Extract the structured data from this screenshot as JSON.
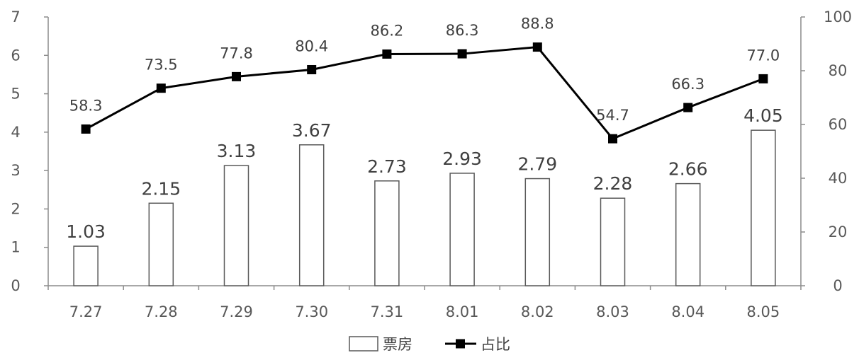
{
  "chart_data": {
    "type": "bar+line",
    "categories": [
      "7.27",
      "7.28",
      "7.29",
      "7.30",
      "7.31",
      "8.01",
      "8.02",
      "8.03",
      "8.04",
      "8.05"
    ],
    "series": [
      {
        "name": "票房",
        "type": "bar",
        "axis": "left",
        "values": [
          1.03,
          2.15,
          3.13,
          3.67,
          2.73,
          2.93,
          2.79,
          2.28,
          2.66,
          4.05
        ],
        "labels": [
          "1.03",
          "2.15",
          "3.13",
          "3.67",
          "2.73",
          "2.93",
          "2.79",
          "2.28",
          "2.66",
          "4.05"
        ],
        "fill": "#ffffff",
        "stroke": "#595959"
      },
      {
        "name": "占比",
        "type": "line",
        "axis": "right",
        "values": [
          58.3,
          73.5,
          77.8,
          80.4,
          86.2,
          86.3,
          88.8,
          54.7,
          66.3,
          77.0
        ],
        "labels": [
          "58.3",
          "73.5",
          "77.8",
          "80.4",
          "86.2",
          "86.3",
          "88.8",
          "54.7",
          "66.3",
          "77.0"
        ],
        "color": "#000000",
        "marker": "square"
      }
    ],
    "y_left": {
      "min": 0,
      "max": 7,
      "ticks": [
        "0",
        "1",
        "2",
        "3",
        "4",
        "5",
        "6",
        "7"
      ]
    },
    "y_right": {
      "min": 0,
      "max": 100,
      "ticks": [
        "0",
        "20",
        "40",
        "60",
        "80",
        "100"
      ]
    },
    "grid": false,
    "legend": "bottom",
    "title": "",
    "xlabel": "",
    "ylabel": ""
  }
}
